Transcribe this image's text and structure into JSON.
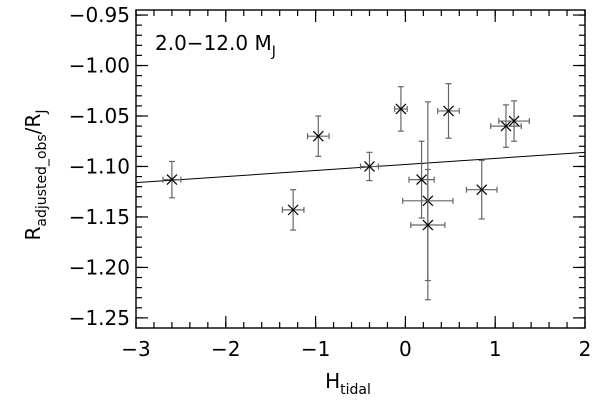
{
  "chart_data": {
    "type": "scatter",
    "annotation": {
      "main": "2.0−12.0 M",
      "sub": "J"
    },
    "xlabel": {
      "main": "H",
      "sub": "tidal"
    },
    "ylabel": {
      "main": "R",
      "sub": "adjusted_obs",
      "tail": "/R",
      "tail_sub": "J"
    },
    "xlim": [
      -3,
      2
    ],
    "ylim": [
      -1.26,
      -0.945
    ],
    "xticks": [
      -3,
      -2,
      -1,
      0,
      1,
      2
    ],
    "xtick_labels": [
      "−3",
      "−2",
      "−1",
      "0",
      "1",
      "2"
    ],
    "yticks": [
      -1.25,
      -1.2,
      -1.15,
      -1.1,
      -1.05,
      -1.0,
      -0.95
    ],
    "ytick_labels": [
      "−1.25",
      "−1.20",
      "−1.15",
      "−1.10",
      "−1.05",
      "−1.00",
      "−0.95"
    ],
    "grid": false,
    "points": [
      {
        "x": -2.6,
        "y": -1.113,
        "xerr": 0.1,
        "yerr": 0.018
      },
      {
        "x": -1.25,
        "y": -1.143,
        "xerr": 0.12,
        "yerr": 0.02
      },
      {
        "x": -0.97,
        "y": -1.07,
        "xerr": 0.12,
        "yerr": 0.02
      },
      {
        "x": -0.4,
        "y": -1.1,
        "xerr": 0.1,
        "yerr": 0.014
      },
      {
        "x": -0.05,
        "y": -1.043,
        "xerr": 0.07,
        "yerr": 0.022
      },
      {
        "x": 0.18,
        "y": -1.113,
        "xerr": 0.14,
        "yerr": 0.038
      },
      {
        "x": 0.25,
        "y": -1.134,
        "xerr": 0.28,
        "yerr": 0.098
      },
      {
        "x": 0.25,
        "y": -1.158,
        "xerr": 0.19,
        "yerr": 0.055
      },
      {
        "x": 0.48,
        "y": -1.045,
        "xerr": 0.12,
        "yerr": 0.027
      },
      {
        "x": 0.85,
        "y": -1.123,
        "xerr": 0.17,
        "yerr": 0.029
      },
      {
        "x": 1.12,
        "y": -1.06,
        "xerr": 0.17,
        "yerr": 0.021
      },
      {
        "x": 1.21,
        "y": -1.055,
        "xerr": 0.17,
        "yerr": 0.02
      }
    ],
    "fit_line": {
      "x": [
        -3,
        2
      ],
      "y": [
        -1.116,
        -1.086
      ]
    }
  }
}
